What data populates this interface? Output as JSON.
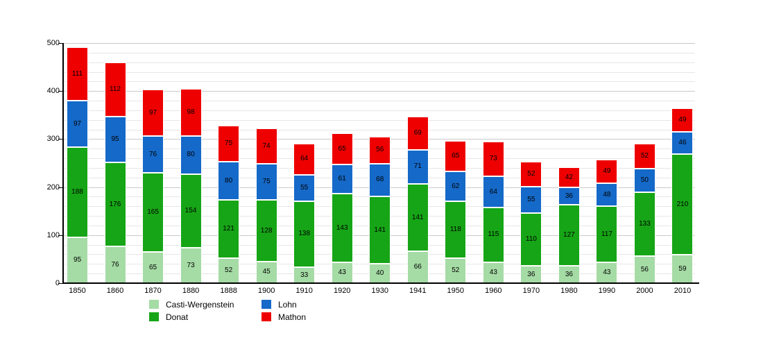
{
  "chart_data": {
    "type": "bar",
    "stacked": true,
    "title": "",
    "xlabel": "",
    "ylabel": "",
    "grid": true,
    "legend_position": "bottom",
    "bar_value_labels": true,
    "ylim": [
      0,
      500
    ],
    "yticks": [
      0,
      100,
      200,
      300,
      400,
      500
    ],
    "minor_grid_step": 20,
    "categories": [
      "1850",
      "1860",
      "1870",
      "1880",
      "1888",
      "1900",
      "1910",
      "1920",
      "1930",
      "1941",
      "1950",
      "1960",
      "1970",
      "1980",
      "1990",
      "2000",
      "2010"
    ],
    "series": [
      {
        "name": "Casti-Wergenstein",
        "color": "#a5dba5",
        "values": [
          95,
          76,
          65,
          73,
          52,
          45,
          33,
          43,
          40,
          66,
          52,
          43,
          36,
          36,
          43,
          56,
          59
        ]
      },
      {
        "name": "Donat",
        "color": "#16a516",
        "values": [
          188,
          176,
          165,
          154,
          121,
          128,
          138,
          143,
          141,
          141,
          118,
          115,
          110,
          127,
          117,
          133,
          210
        ]
      },
      {
        "name": "Lohn",
        "color": "#1569c8",
        "values": [
          97,
          95,
          76,
          80,
          80,
          75,
          55,
          61,
          68,
          71,
          62,
          64,
          55,
          36,
          48,
          50,
          46
        ]
      },
      {
        "name": "Mathon",
        "color": "#ee0000",
        "values": [
          111,
          112,
          97,
          98,
          75,
          74,
          64,
          65,
          56,
          69,
          65,
          73,
          52,
          42,
          49,
          52,
          49
        ]
      }
    ],
    "legend_columns": [
      [
        "Casti-Wergenstein",
        "Donat"
      ],
      [
        "Lohn",
        "Mathon"
      ]
    ]
  }
}
